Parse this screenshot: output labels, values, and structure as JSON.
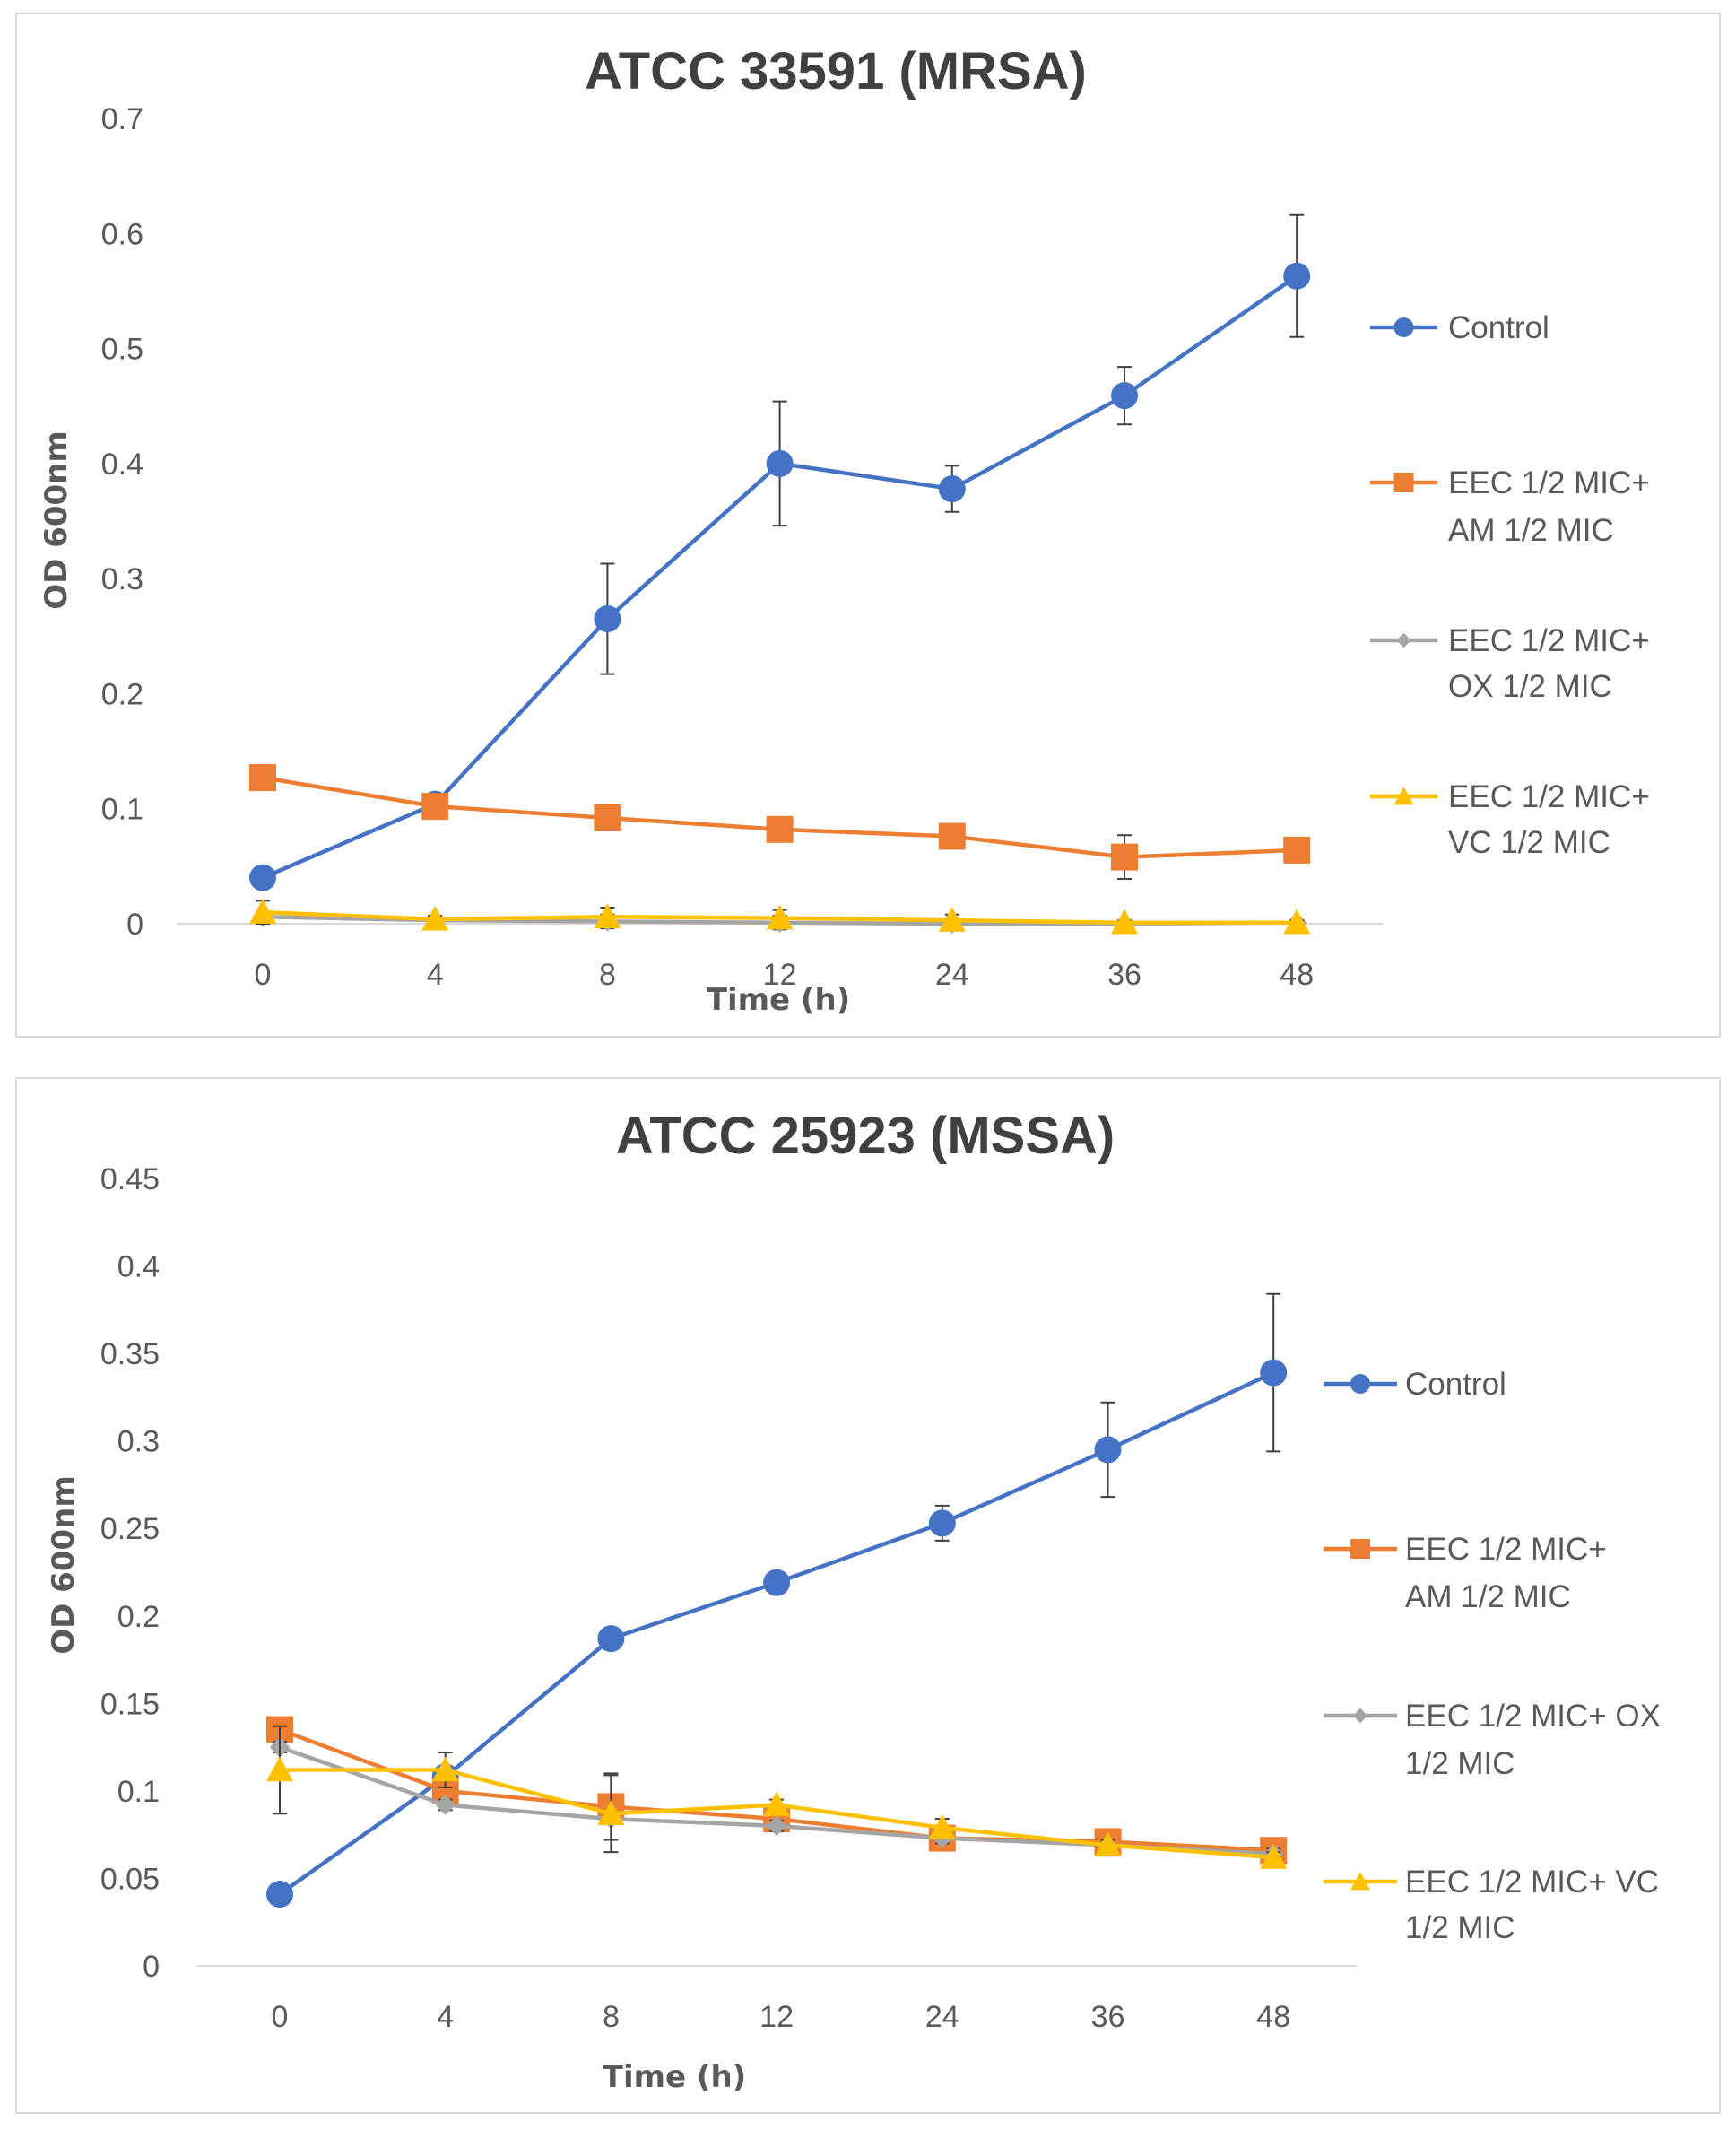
{
  "chart_data": [
    {
      "type": "line",
      "title": "ATCC 33591 (MRSA)",
      "xlabel": "Time (h)",
      "ylabel": "OD 600nm",
      "categories": [
        "0",
        "4",
        "8",
        "12",
        "24",
        "36",
        "48"
      ],
      "ylim": [
        0,
        0.7
      ],
      "yticks": [
        "0",
        "0.1",
        "0.2",
        "0.3",
        "0.4",
        "0.5",
        "0.6",
        "0.7"
      ],
      "ytick_values": [
        0,
        0.1,
        0.2,
        0.3,
        0.4,
        0.5,
        0.6,
        0.7
      ],
      "grid": false,
      "legend_position": "right",
      "series": [
        {
          "name": "Control",
          "legend_lines": [
            "Control"
          ],
          "color": "#4472C4",
          "marker": "circle",
          "values": [
            0.04,
            0.104,
            0.265,
            0.4,
            0.378,
            0.459,
            0.563
          ],
          "errors": [
            0.003,
            0.006,
            0.048,
            0.054,
            0.02,
            0.025,
            0.053
          ]
        },
        {
          "name": "EEC 1/2 MIC+ AM 1/2 MIC",
          "legend_lines": [
            "EEC 1/2 MIC+",
            "AM 1/2 MIC"
          ],
          "color": "#ED7D31",
          "marker": "square",
          "values": [
            0.127,
            0.102,
            0.092,
            0.082,
            0.076,
            0.058,
            0.064
          ],
          "errors": [
            0.003,
            0.003,
            0.003,
            0.003,
            0.003,
            0.019,
            0.003
          ]
        },
        {
          "name": "EEC 1/2 MIC+ OX 1/2 MIC",
          "legend_lines": [
            "EEC 1/2 MIC+",
            "OX 1/2 MIC"
          ],
          "color": "#A5A5A5",
          "marker": "diamond",
          "values": [
            0.006,
            0.003,
            0.002,
            0.001,
            0.0,
            0.0,
            0.001
          ],
          "errors": [
            0.004,
            0.002,
            0.006,
            0.006,
            0.004,
            0.002,
            0.002
          ]
        },
        {
          "name": "EEC 1/2 MIC+ VC 1/2 MIC",
          "legend_lines": [
            "EEC 1/2 MIC+",
            "VC 1/2 MIC"
          ],
          "color": "#FFC000",
          "marker": "triangle",
          "values": [
            0.01,
            0.004,
            0.006,
            0.005,
            0.003,
            0.001,
            0.001
          ],
          "errors": [
            0.01,
            0.003,
            0.008,
            0.007,
            0.005,
            0.002,
            0.002
          ]
        }
      ]
    },
    {
      "type": "line",
      "title": "ATCC 25923 (MSSA)",
      "xlabel": "Time (h)",
      "ylabel": "OD 600nm",
      "categories": [
        "0",
        "4",
        "8",
        "12",
        "24",
        "36",
        "48"
      ],
      "ylim": [
        0,
        0.45
      ],
      "yticks": [
        "0",
        "0.05",
        "0.1",
        "0.15",
        "0.2",
        "0.25",
        "0.3",
        "0.35",
        "0.4",
        "0.45"
      ],
      "ytick_values": [
        0,
        0.05,
        0.1,
        0.15,
        0.2,
        0.25,
        0.3,
        0.35,
        0.4,
        0.45
      ],
      "grid": false,
      "legend_position": "right",
      "series": [
        {
          "name": "Control",
          "legend_lines": [
            "Control"
          ],
          "color": "#4472C4",
          "marker": "circle",
          "values": [
            0.041,
            0.108,
            0.187,
            0.219,
            0.253,
            0.295,
            0.339
          ],
          "errors": [
            0.002,
            0.004,
            0.003,
            0.003,
            0.01,
            0.027,
            0.045
          ]
        },
        {
          "name": "EEC 1/2 MIC+ AM 1/2 MIC",
          "legend_lines": [
            "EEC 1/2 MIC+",
            "AM 1/2 MIC"
          ],
          "color": "#ED7D31",
          "marker": "square",
          "values": [
            0.135,
            0.1,
            0.091,
            0.084,
            0.073,
            0.071,
            0.066
          ],
          "errors": [
            0.003,
            0.003,
            0.019,
            0.003,
            0.003,
            0.003,
            0.003
          ]
        },
        {
          "name": "EEC 1/2 MIC+ OX 1/2 MIC",
          "legend_lines": [
            "EEC 1/2 MIC+ OX",
            "1/2 MIC"
          ],
          "color": "#A5A5A5",
          "marker": "diamond",
          "values": [
            0.125,
            0.092,
            0.084,
            0.08,
            0.073,
            0.069,
            0.064
          ],
          "errors": [
            0.003,
            0.003,
            0.003,
            0.003,
            0.003,
            0.003,
            0.003
          ]
        },
        {
          "name": "EEC 1/2 MIC+ VC 1/2 MIC",
          "legend_lines": [
            "EEC 1/2 MIC+ VC",
            "1/2 MIC"
          ],
          "color": "#FFC000",
          "marker": "triangle",
          "values": [
            0.112,
            0.112,
            0.087,
            0.092,
            0.079,
            0.069,
            0.062
          ],
          "errors": [
            0.025,
            0.01,
            0.022,
            0.003,
            0.005,
            0.003,
            0.003
          ]
        }
      ]
    }
  ]
}
